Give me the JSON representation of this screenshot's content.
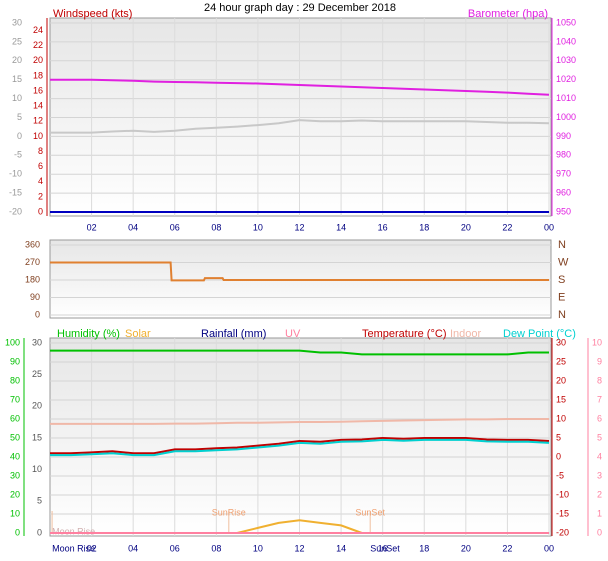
{
  "chart_data": [
    {
      "type": "line",
      "title": "24 hour graph day : 29 December 2018",
      "ylabel": "Windspeed (kts)",
      "y2label": "Barometer (hpa)",
      "x": [
        0,
        1,
        2,
        3,
        4,
        5,
        6,
        7,
        8,
        9,
        10,
        11,
        12,
        13,
        14,
        15,
        16,
        17,
        18,
        19,
        20,
        21,
        22,
        23,
        24
      ],
      "xlim": [
        0,
        24
      ],
      "xticks": [
        {
          "value": 2,
          "label": "02"
        },
        {
          "value": 4,
          "label": "04"
        },
        {
          "value": 6,
          "label": "06"
        },
        {
          "value": 8,
          "label": "08"
        },
        10,
        12,
        14,
        16,
        18,
        20,
        22,
        {
          "value": 24,
          "label": "00"
        }
      ],
      "ylim": [
        -20,
        30
      ],
      "yticks": [
        30,
        25,
        20,
        15,
        10,
        5,
        0,
        -5,
        -10,
        -15,
        -20
      ],
      "y2lim": [
        950,
        1050
      ],
      "y2ticks": [
        1050,
        1040,
        1030,
        1020,
        1010,
        1000,
        990,
        980,
        970,
        960,
        950
      ],
      "y3lim": [
        0,
        25
      ],
      "y3ticks": [
        24,
        22,
        20,
        18,
        16,
        14,
        12,
        10,
        8,
        6,
        4,
        2,
        0
      ],
      "grid": true,
      "series": [
        {
          "color": "#e020e0",
          "axis": "y2",
          "values": [
            1020,
            1020,
            1020,
            1019.7,
            1019.4,
            1019,
            1018.8,
            1018.6,
            1018.4,
            1018.2,
            1018,
            1017.6,
            1017.2,
            1016.8,
            1016.4,
            1016,
            1015.6,
            1015.2,
            1014.8,
            1014.4,
            1014,
            1013.6,
            1013.2,
            1012.6,
            1012
          ]
        },
        {
          "color": "#c8c8c8",
          "axis": "y",
          "values": [
            1,
            1,
            1,
            1.3,
            1.5,
            1.2,
            1.5,
            2,
            2.3,
            2.6,
            3,
            3.5,
            4.3,
            4,
            4,
            4.2,
            4,
            4,
            4,
            4,
            4,
            3.8,
            3.6,
            3.6,
            3.5
          ]
        },
        {
          "color": "#0000c0",
          "axis": "y3",
          "values": [
            0,
            0,
            0,
            0,
            0,
            0,
            0,
            0,
            0,
            0,
            0,
            0,
            0,
            0,
            0,
            0,
            0,
            0,
            0,
            0,
            0,
            0,
            0,
            0,
            0
          ]
        }
      ]
    },
    {
      "type": "line",
      "x": [
        0,
        5.8,
        5.85,
        7.4,
        7.45,
        8.3,
        8.35,
        24
      ],
      "xlim": [
        0,
        24
      ],
      "ylim": [
        0,
        360
      ],
      "yticks": [
        360,
        270,
        180,
        90,
        0
      ],
      "y2lim": [
        0,
        360
      ],
      "y2ticks": [
        {
          "value": 360,
          "label": "N"
        },
        {
          "value": 270,
          "label": "W"
        },
        {
          "value": 180,
          "label": "S"
        },
        {
          "value": 90,
          "label": "E"
        },
        {
          "value": 0,
          "label": "N"
        }
      ],
      "grid": true,
      "series": [
        {
          "color": "#e08030",
          "axis": "y",
          "values": [
            270,
            270,
            178,
            178,
            190,
            190,
            180,
            180
          ]
        }
      ]
    },
    {
      "type": "line",
      "x": [
        0,
        1,
        2,
        3,
        4,
        5,
        6,
        7,
        8,
        9,
        10,
        11,
        12,
        13,
        14,
        15,
        16,
        17,
        18,
        19,
        20,
        21,
        22,
        23,
        24
      ],
      "xlim": [
        0,
        24
      ],
      "xticks": [
        {
          "value": 2,
          "label": "02"
        },
        {
          "value": 4,
          "label": "04"
        },
        {
          "value": 6,
          "label": "06"
        },
        {
          "value": 8,
          "label": "08"
        },
        10,
        12,
        14,
        16,
        18,
        20,
        22,
        {
          "value": 24,
          "label": "00"
        }
      ],
      "ylim": [
        0,
        100
      ],
      "yticks": [
        100,
        90,
        80,
        70,
        60,
        50,
        40,
        30,
        20,
        10,
        0
      ],
      "y2lim": [
        -20,
        30
      ],
      "y2ticks": [
        30,
        25,
        20,
        15,
        10,
        5,
        0,
        -5,
        -10,
        -15,
        -20
      ],
      "y3lim": [
        0,
        30
      ],
      "y3ticks": [
        30,
        25,
        20,
        15,
        10,
        5,
        0
      ],
      "y4lim": [
        0,
        10
      ],
      "y4ticks": [
        10,
        9,
        8,
        7,
        6,
        5,
        4,
        3,
        2,
        1,
        0
      ],
      "grid": true,
      "series": [
        {
          "name": "Humidity (%)",
          "color": "#00c000",
          "axis": "y",
          "values": [
            96,
            96,
            96,
            96,
            96,
            96,
            96,
            96,
            96,
            96,
            96,
            96,
            96,
            95,
            95,
            94,
            94,
            94,
            94,
            94,
            94,
            94,
            94,
            95,
            95
          ]
        },
        {
          "name": "Solar",
          "color": "#f0b030",
          "axis": "y3",
          "values": [
            null,
            null,
            null,
            null,
            null,
            null,
            null,
            null,
            null,
            0,
            0.8,
            1.6,
            2,
            1.6,
            1.2,
            0,
            null,
            null,
            null,
            null,
            null,
            null,
            null,
            null,
            null
          ]
        },
        {
          "name": "Rainfall (mm)",
          "color": "#000080",
          "axis": "y3",
          "values": [
            0,
            0,
            0,
            0,
            0,
            0,
            0,
            0,
            0,
            0,
            0,
            0,
            0,
            0,
            0,
            0,
            0,
            0,
            0,
            0,
            0,
            0,
            0,
            0,
            0
          ]
        },
        {
          "name": "UV",
          "color": "#ff80a0",
          "axis": "y4",
          "values": [
            0,
            0,
            0,
            0,
            0,
            0,
            0,
            0,
            0,
            0,
            0,
            0,
            0,
            0,
            0,
            0,
            0,
            0,
            0,
            0,
            0,
            0,
            0,
            0,
            0
          ]
        },
        {
          "name": "Temperature (°C)",
          "color": "#c00000",
          "axis": "y2",
          "values": [
            1,
            1,
            1.2,
            1.5,
            1,
            1,
            2,
            2,
            2.3,
            2.5,
            3,
            3.5,
            4.2,
            4,
            4.5,
            4.6,
            5,
            4.8,
            5,
            5,
            5,
            4.6,
            4.5,
            4.5,
            4.2
          ]
        },
        {
          "name": "Indoor",
          "color": "#f0b8a8",
          "axis": "y2",
          "values": [
            8.7,
            8.7,
            8.7,
            8.7,
            8.7,
            8.7,
            8.8,
            8.8,
            8.9,
            9,
            9,
            9.1,
            9.2,
            9.2,
            9.3,
            9.4,
            9.5,
            9.6,
            9.7,
            9.8,
            9.9,
            9.9,
            10,
            10,
            10
          ]
        },
        {
          "name": "Dew Point (°C)",
          "color": "#00d0d0",
          "axis": "y2",
          "values": [
            0.5,
            0.5,
            0.7,
            1,
            0.5,
            0.5,
            1.5,
            1.5,
            1.8,
            2,
            2.5,
            3,
            3.7,
            3.5,
            4,
            4.1,
            4.5,
            4.3,
            4.5,
            4.5,
            4.5,
            4.1,
            4,
            4,
            3.7
          ]
        }
      ],
      "events": [
        {
          "label": "SunRise",
          "x": 8.6
        },
        {
          "label": "SunSet",
          "x": 15.4
        },
        {
          "label": "Moon Rise",
          "x": 0.1
        }
      ],
      "bottom_events": [
        {
          "label": "Moon Rise",
          "x": 0.1
        },
        {
          "label": "SunSet",
          "x": 15.4
        }
      ]
    }
  ]
}
